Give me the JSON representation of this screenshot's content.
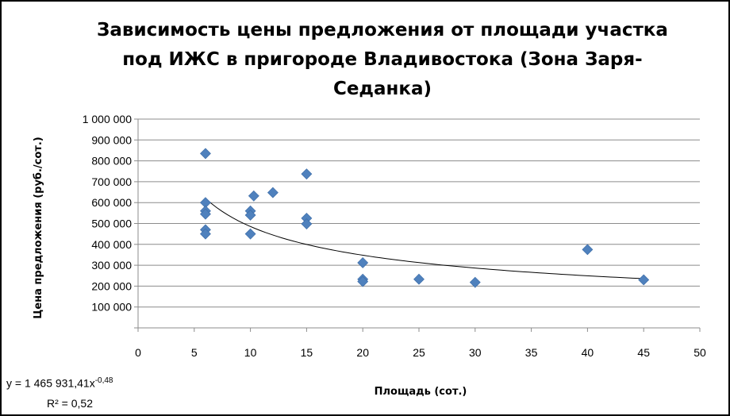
{
  "chart_data": {
    "type": "scatter",
    "title_lines": [
      "Зависимость цены предложения от площади участка",
      "под ИЖС в пригороде Владивостока  (Зона Заря-",
      "Седанка)"
    ],
    "xlabel": "Площадь (сот.)",
    "ylabel": "Цена предложения (руб./сот.)",
    "xlim": [
      0,
      50
    ],
    "ylim": [
      0,
      1000000
    ],
    "x_ticks": [
      "0",
      "5",
      "10",
      "15",
      "20",
      "25",
      "30",
      "35",
      "40",
      "45",
      "50"
    ],
    "y_ticks": [
      "",
      "100 000",
      "200 000",
      "300 000",
      "400 000",
      "500 000",
      "600 000",
      "700 000",
      "800 000",
      "900 000",
      "1 000 000"
    ],
    "grid": "horizontal",
    "marker_color": "#4F81BD",
    "trendline_color": "#000000",
    "points": [
      {
        "x": 6,
        "y": 835000
      },
      {
        "x": 6,
        "y": 600000
      },
      {
        "x": 6,
        "y": 560000
      },
      {
        "x": 6,
        "y": 545000
      },
      {
        "x": 6,
        "y": 470000
      },
      {
        "x": 6,
        "y": 450000
      },
      {
        "x": 10,
        "y": 560000
      },
      {
        "x": 10,
        "y": 540000
      },
      {
        "x": 10,
        "y": 450000
      },
      {
        "x": 10.3,
        "y": 632000
      },
      {
        "x": 12,
        "y": 648000
      },
      {
        "x": 15,
        "y": 737000
      },
      {
        "x": 15,
        "y": 525000
      },
      {
        "x": 15,
        "y": 498000
      },
      {
        "x": 20,
        "y": 312000
      },
      {
        "x": 20,
        "y": 233000
      },
      {
        "x": 20,
        "y": 222000
      },
      {
        "x": 25,
        "y": 233000
      },
      {
        "x": 30,
        "y": 218000
      },
      {
        "x": 40,
        "y": 375000
      },
      {
        "x": 45,
        "y": 230000
      }
    ],
    "trendline": {
      "type": "power",
      "coefficient": 1465931.41,
      "exponent": -0.48,
      "x_from": 6,
      "x_to": 45,
      "equation_prefix": "y = 1 465 931,41x",
      "equation_exponent": "-0,48",
      "r2_label": "R² = 0,52"
    }
  }
}
